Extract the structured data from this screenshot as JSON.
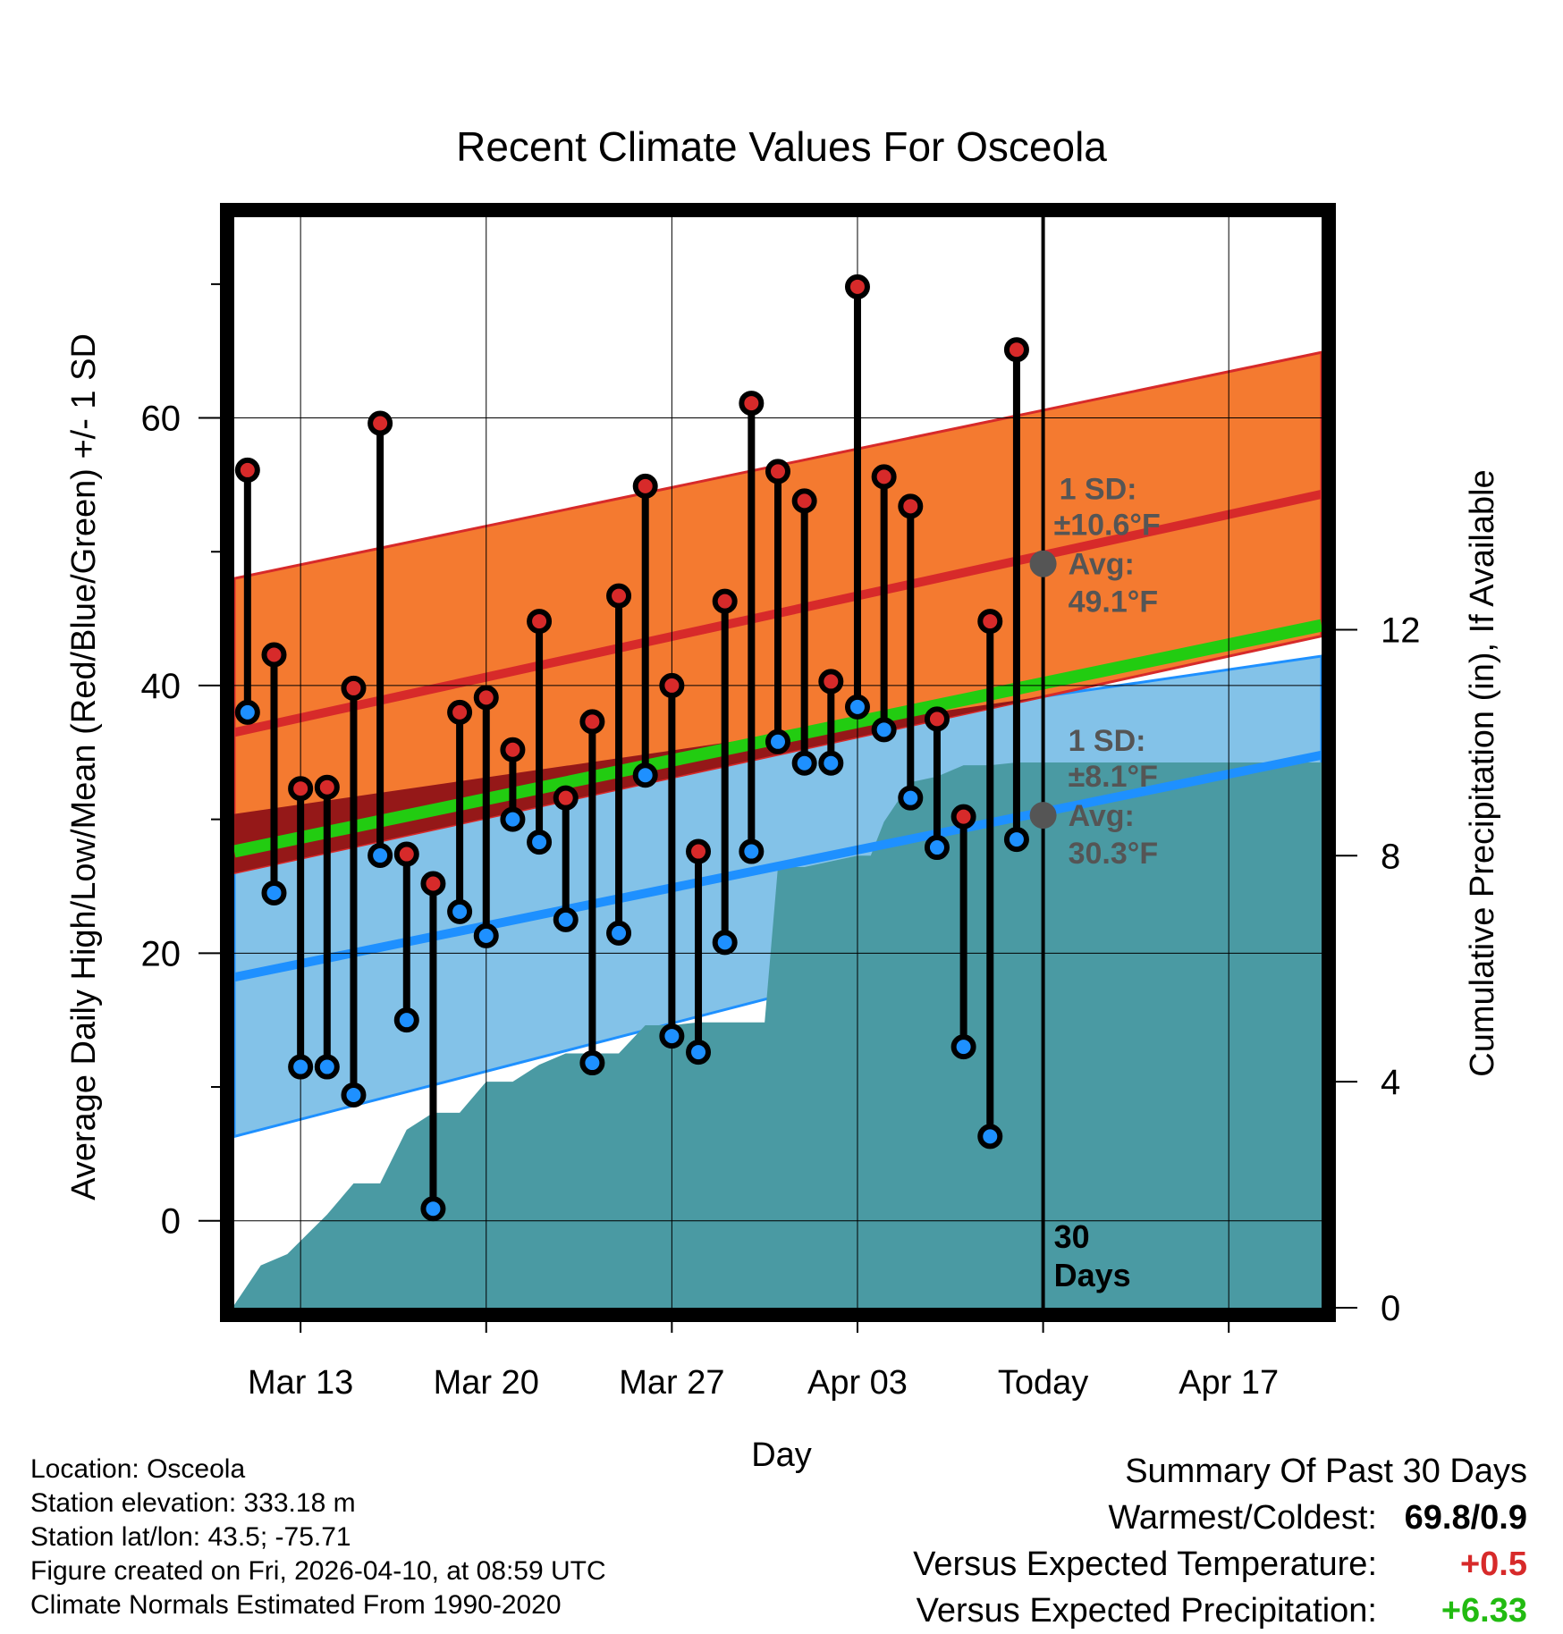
{
  "chart_data": {
    "type": "line",
    "title": "Recent Climate Values For Osceola",
    "xlabel": "Day",
    "ylabel": "Average Daily High/Low/Mean (Red/Blue/Green) +/- 1 SD",
    "y2label": "Cumulative Precipitation (in), If Available",
    "ylim": [
      -6.5,
      75
    ],
    "y2lim": [
      0,
      19.3
    ],
    "xlim": [
      -30.5,
      10.5
    ],
    "x_unit": "days relative to today",
    "x_ticks": [
      {
        "x": -28,
        "label": "Mar 13"
      },
      {
        "x": -21,
        "label": "Mar 20"
      },
      {
        "x": -14,
        "label": "Mar 27"
      },
      {
        "x": -7,
        "label": "Apr 03"
      },
      {
        "x": 0,
        "label": "Today"
      },
      {
        "x": 7,
        "label": "Apr 17"
      }
    ],
    "y_ticks": [
      0,
      20,
      40,
      60
    ],
    "y2_ticks": [
      0,
      4,
      8,
      12
    ],
    "normals": {
      "x": [
        -30.5,
        10.5
      ],
      "high_mean": [
        36.5,
        54.3
      ],
      "high_upper": [
        48.0,
        64.9
      ],
      "high_lower": [
        26.0,
        43.7
      ],
      "low_mean": [
        18.2,
        34.8
      ],
      "low_upper": [
        30.4,
        42.2
      ],
      "low_lower": [
        6.3,
        27.3
      ],
      "mean_normal": [
        27.6,
        44.5
      ]
    },
    "daily_highs": [
      56.1,
      42.3,
      32.3,
      32.4,
      39.8,
      59.6,
      27.4,
      25.2,
      38.0,
      39.1,
      35.2,
      44.8,
      31.6,
      37.3,
      46.7,
      54.9,
      40.0,
      27.6,
      46.3,
      61.1,
      56.0,
      53.8,
      40.3,
      69.8,
      55.6,
      53.4,
      37.5,
      30.2,
      44.8,
      65.1
    ],
    "daily_lows": [
      38.0,
      24.5,
      11.5,
      11.5,
      9.4,
      27.3,
      15.0,
      0.9,
      23.1,
      21.3,
      30.0,
      28.3,
      22.5,
      11.8,
      21.5,
      33.3,
      13.8,
      12.6,
      20.8,
      27.6,
      35.8,
      34.2,
      34.2,
      38.4,
      36.7,
      31.6,
      27.9,
      13.0,
      6.3,
      28.5
    ],
    "precip": {
      "x": [
        -30.5,
        -29.5,
        -28.5,
        -27,
        -26,
        -25,
        -24,
        -23,
        -22,
        -21,
        -20,
        -19,
        -18,
        -17,
        -16,
        -15,
        -14,
        -13,
        -12,
        -11,
        -10.5,
        -10,
        -9,
        -8,
        -7,
        -6.5,
        -6,
        -5,
        -4,
        -3,
        -2,
        -1,
        0,
        10.5
      ],
      "y": [
        0.05,
        0.75,
        0.95,
        1.65,
        2.2,
        2.2,
        3.15,
        3.45,
        3.45,
        4.0,
        4.0,
        4.3,
        4.5,
        4.5,
        4.5,
        5.0,
        5.0,
        5.05,
        5.05,
        5.05,
        5.05,
        7.8,
        7.8,
        7.9,
        8.0,
        8.0,
        8.6,
        9.3,
        9.4,
        9.6,
        9.6,
        9.65,
        9.65,
        9.65
      ]
    },
    "annotations": {
      "high_sd": "1 SD:",
      "high_sd_val": "±10.6°F",
      "high_avg": "Avg:",
      "high_avg_val": "49.1°F",
      "low_sd": "1 SD:",
      "low_sd_val": "±8.1°F",
      "low_avg": "Avg:",
      "low_avg_val": "30.3°F",
      "today_label_1": "30",
      "today_label_2": "Days",
      "today_high_avg": 49.1,
      "today_low_avg": 30.3
    },
    "colors": {
      "high_band": "#f47a30",
      "high_line": "#d72a2a",
      "low_band": "#83c2e8",
      "low_line": "#1e90ff",
      "mean_line": "#22cc11",
      "overlap": "#951818",
      "precip": "#4a9aa3",
      "high_dot": "#d72a2a",
      "low_dot": "#1e90ff",
      "avg_dot": "#555555",
      "annotation": "#555555"
    }
  },
  "footer": {
    "location": "Location: Osceola",
    "elevation": "Station elevation: 333.18 m",
    "latlon": "Station lat/lon: 43.5; -75.71",
    "created": "Figure created on Fri, 2026-04-10, at 08:59 UTC",
    "normals": "Climate Normals Estimated From 1990-2020"
  },
  "summary": {
    "title": "Summary Of Past 30 Days",
    "warm_cold_label": "Warmest/Coldest:",
    "warm_cold_value": "69.8/0.9",
    "temp_label": "Versus Expected Temperature:",
    "temp_value": "+0.5",
    "temp_color": "#d72a2a",
    "precip_label": "Versus Expected Precipitation:",
    "precip_value": "+6.33",
    "precip_color": "#22bb11"
  }
}
